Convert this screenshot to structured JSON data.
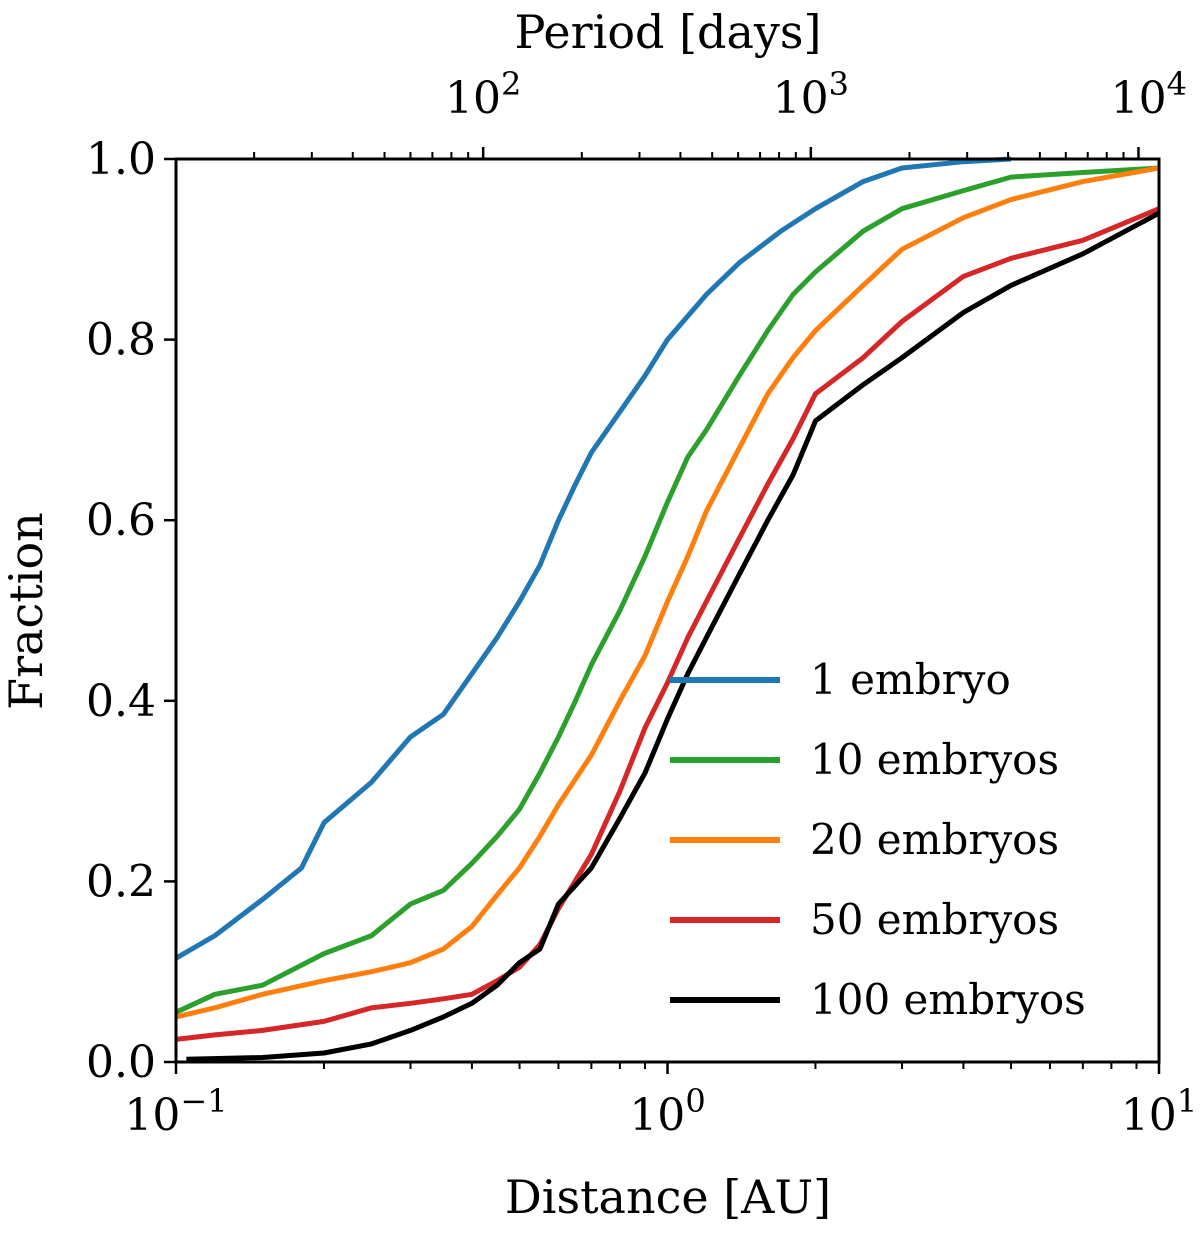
{
  "chart_data": {
    "type": "line",
    "x_scale": "log",
    "xlim": [
      0.1,
      10
    ],
    "ylim": [
      0,
      1
    ],
    "xlabel": "Distance [AU]",
    "ylabel": "Fraction",
    "top_xlabel": "Period [days]",
    "x_ticks": [
      {
        "value": 0.1,
        "base": "10",
        "exp": "−1"
      },
      {
        "value": 1,
        "base": "10",
        "exp": "0"
      },
      {
        "value": 10,
        "base": "10",
        "exp": "1"
      }
    ],
    "y_ticks": [
      {
        "value": 0.0,
        "label": "0.0"
      },
      {
        "value": 0.2,
        "label": "0.2"
      },
      {
        "value": 0.4,
        "label": "0.4"
      },
      {
        "value": 0.6,
        "label": "0.6"
      },
      {
        "value": 0.8,
        "label": "0.8"
      },
      {
        "value": 1.0,
        "label": "1.0"
      }
    ],
    "top_ticks": [
      {
        "period": 100,
        "base": "10",
        "exp": "2"
      },
      {
        "period": 1000,
        "base": "10",
        "exp": "3"
      },
      {
        "period": 10000,
        "base": "10",
        "exp": "4"
      }
    ],
    "legend": {
      "position": "lower-right"
    },
    "series": [
      {
        "name": "1 embryo",
        "color": "#1f77b4",
        "points": [
          [
            0.1,
            0.115
          ],
          [
            0.12,
            0.14
          ],
          [
            0.15,
            0.18
          ],
          [
            0.18,
            0.215
          ],
          [
            0.2,
            0.265
          ],
          [
            0.25,
            0.31
          ],
          [
            0.3,
            0.36
          ],
          [
            0.35,
            0.385
          ],
          [
            0.4,
            0.43
          ],
          [
            0.45,
            0.47
          ],
          [
            0.5,
            0.51
          ],
          [
            0.55,
            0.55
          ],
          [
            0.6,
            0.6
          ],
          [
            0.65,
            0.64
          ],
          [
            0.7,
            0.675
          ],
          [
            0.8,
            0.72
          ],
          [
            0.9,
            0.76
          ],
          [
            1.0,
            0.8
          ],
          [
            1.2,
            0.85
          ],
          [
            1.4,
            0.885
          ],
          [
            1.7,
            0.92
          ],
          [
            2.0,
            0.945
          ],
          [
            2.5,
            0.975
          ],
          [
            3.0,
            0.99
          ],
          [
            4.0,
            0.997
          ],
          [
            5.0,
            1.0
          ]
        ]
      },
      {
        "name": "10 embryos",
        "color": "#2ca02c",
        "points": [
          [
            0.1,
            0.055
          ],
          [
            0.12,
            0.075
          ],
          [
            0.15,
            0.085
          ],
          [
            0.2,
            0.12
          ],
          [
            0.25,
            0.14
          ],
          [
            0.3,
            0.175
          ],
          [
            0.35,
            0.19
          ],
          [
            0.4,
            0.22
          ],
          [
            0.45,
            0.25
          ],
          [
            0.5,
            0.28
          ],
          [
            0.55,
            0.32
          ],
          [
            0.6,
            0.36
          ],
          [
            0.65,
            0.4
          ],
          [
            0.7,
            0.44
          ],
          [
            0.8,
            0.5
          ],
          [
            0.9,
            0.56
          ],
          [
            1.0,
            0.62
          ],
          [
            1.1,
            0.67
          ],
          [
            1.2,
            0.7
          ],
          [
            1.4,
            0.76
          ],
          [
            1.6,
            0.81
          ],
          [
            1.8,
            0.85
          ],
          [
            2.0,
            0.875
          ],
          [
            2.5,
            0.92
          ],
          [
            3.0,
            0.945
          ],
          [
            4.0,
            0.965
          ],
          [
            5.0,
            0.98
          ],
          [
            7.0,
            0.985
          ],
          [
            10.0,
            0.99
          ]
        ]
      },
      {
        "name": "20 embryos",
        "color": "#ff7f0e",
        "points": [
          [
            0.1,
            0.05
          ],
          [
            0.12,
            0.06
          ],
          [
            0.15,
            0.075
          ],
          [
            0.2,
            0.09
          ],
          [
            0.25,
            0.1
          ],
          [
            0.3,
            0.11
          ],
          [
            0.35,
            0.125
          ],
          [
            0.4,
            0.15
          ],
          [
            0.45,
            0.185
          ],
          [
            0.5,
            0.215
          ],
          [
            0.55,
            0.25
          ],
          [
            0.6,
            0.285
          ],
          [
            0.7,
            0.34
          ],
          [
            0.8,
            0.4
          ],
          [
            0.9,
            0.45
          ],
          [
            1.0,
            0.51
          ],
          [
            1.1,
            0.56
          ],
          [
            1.2,
            0.61
          ],
          [
            1.4,
            0.68
          ],
          [
            1.6,
            0.74
          ],
          [
            1.8,
            0.78
          ],
          [
            2.0,
            0.81
          ],
          [
            2.5,
            0.86
          ],
          [
            3.0,
            0.9
          ],
          [
            4.0,
            0.935
          ],
          [
            5.0,
            0.955
          ],
          [
            7.0,
            0.975
          ],
          [
            10.0,
            0.99
          ]
        ]
      },
      {
        "name": "50 embryos",
        "color": "#d62728",
        "points": [
          [
            0.1,
            0.025
          ],
          [
            0.12,
            0.03
          ],
          [
            0.15,
            0.035
          ],
          [
            0.2,
            0.045
          ],
          [
            0.25,
            0.06
          ],
          [
            0.3,
            0.065
          ],
          [
            0.35,
            0.07
          ],
          [
            0.4,
            0.075
          ],
          [
            0.45,
            0.09
          ],
          [
            0.5,
            0.105
          ],
          [
            0.55,
            0.13
          ],
          [
            0.6,
            0.17
          ],
          [
            0.7,
            0.23
          ],
          [
            0.8,
            0.3
          ],
          [
            0.9,
            0.37
          ],
          [
            1.0,
            0.42
          ],
          [
            1.1,
            0.47
          ],
          [
            1.2,
            0.51
          ],
          [
            1.4,
            0.58
          ],
          [
            1.6,
            0.64
          ],
          [
            1.8,
            0.69
          ],
          [
            2.0,
            0.74
          ],
          [
            2.5,
            0.78
          ],
          [
            3.0,
            0.82
          ],
          [
            4.0,
            0.87
          ],
          [
            5.0,
            0.89
          ],
          [
            7.0,
            0.91
          ],
          [
            10.0,
            0.945
          ]
        ]
      },
      {
        "name": "100 embryos",
        "color": "#000000",
        "points": [
          [
            0.105,
            0.003
          ],
          [
            0.15,
            0.005
          ],
          [
            0.2,
            0.01
          ],
          [
            0.25,
            0.02
          ],
          [
            0.3,
            0.035
          ],
          [
            0.35,
            0.05
          ],
          [
            0.4,
            0.065
          ],
          [
            0.45,
            0.085
          ],
          [
            0.5,
            0.11
          ],
          [
            0.55,
            0.125
          ],
          [
            0.6,
            0.175
          ],
          [
            0.7,
            0.215
          ],
          [
            0.8,
            0.27
          ],
          [
            0.9,
            0.32
          ],
          [
            1.0,
            0.38
          ],
          [
            1.1,
            0.43
          ],
          [
            1.2,
            0.47
          ],
          [
            1.4,
            0.54
          ],
          [
            1.6,
            0.6
          ],
          [
            1.8,
            0.65
          ],
          [
            2.0,
            0.71
          ],
          [
            2.5,
            0.75
          ],
          [
            3.0,
            0.78
          ],
          [
            4.0,
            0.83
          ],
          [
            5.0,
            0.86
          ],
          [
            7.0,
            0.895
          ],
          [
            10.0,
            0.94
          ]
        ]
      }
    ]
  }
}
